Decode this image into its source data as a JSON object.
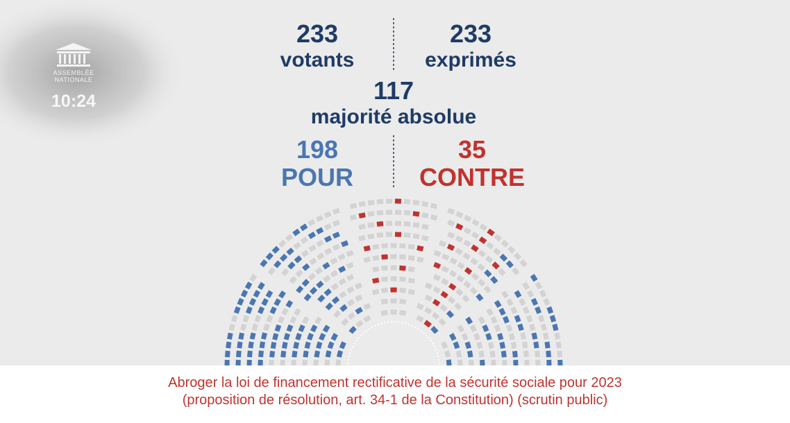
{
  "logo": {
    "line1": "ASSEMBLÉE",
    "line2": "NATIONALE"
  },
  "clock": "10:24",
  "results": {
    "votants": {
      "value": 233,
      "label": "votants"
    },
    "exprimes": {
      "value": 233,
      "label": "exprimés"
    },
    "majorite": {
      "value": 117,
      "label": "majorité absolue"
    },
    "pour": {
      "value": 198,
      "label": "POUR"
    },
    "contre": {
      "value": 35,
      "label": "CONTRE"
    }
  },
  "caption": {
    "line1": "Abroger la loi de financement rectificative de la sécurité sociale pour 2023",
    "line2": "(proposition de résolution, art. 34-1 de la Constitution) (scrutin public)"
  }
}
